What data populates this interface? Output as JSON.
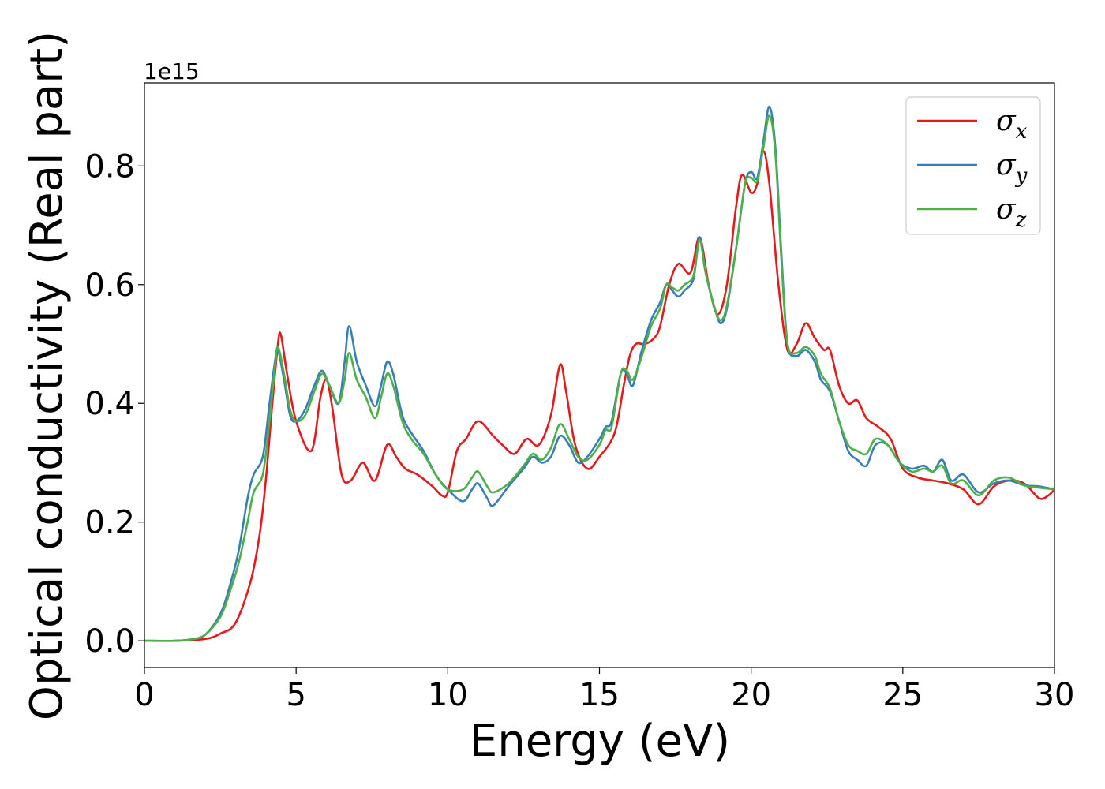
{
  "chart_data": {
    "type": "line",
    "title": "",
    "xlabel": "Energy (eV)",
    "ylabel": "Optical conductivity (Real part)",
    "y_offset_label": "1e15",
    "xlim": [
      0,
      30
    ],
    "ylim": [
      -0.045,
      0.94
    ],
    "x_ticks": [
      0,
      5,
      10,
      15,
      20,
      25,
      30
    ],
    "x_tick_labels": [
      "0",
      "5",
      "10",
      "15",
      "20",
      "25",
      "30"
    ],
    "y_ticks": [
      0.0,
      0.2,
      0.4,
      0.6,
      0.8
    ],
    "y_tick_labels": [
      "0.0",
      "0.2",
      "0.4",
      "0.6",
      "0.8"
    ],
    "grid": false,
    "legend_position": "top-right",
    "legend": [
      {
        "symbol": "σ",
        "subscript": "x",
        "color": "#e41a1c"
      },
      {
        "symbol": "σ",
        "subscript": "y",
        "color": "#377eb8"
      },
      {
        "symbol": "σ",
        "subscript": "z",
        "color": "#4daf4a"
      }
    ],
    "series": [
      {
        "name": "σx",
        "color": "#e41a1c",
        "points": [
          [
            0,
            0
          ],
          [
            1,
            0
          ],
          [
            2,
            0.003
          ],
          [
            2.5,
            0.012
          ],
          [
            3,
            0.03
          ],
          [
            3.5,
            0.1
          ],
          [
            3.8,
            0.18
          ],
          [
            4,
            0.27
          ],
          [
            4.2,
            0.39
          ],
          [
            4.4,
            0.5
          ],
          [
            4.5,
            0.515
          ],
          [
            4.7,
            0.45
          ],
          [
            5,
            0.37
          ],
          [
            5.5,
            0.32
          ],
          [
            5.8,
            0.41
          ],
          [
            6,
            0.44
          ],
          [
            6.2,
            0.39
          ],
          [
            6.5,
            0.28
          ],
          [
            6.8,
            0.27
          ],
          [
            7.2,
            0.3
          ],
          [
            7.6,
            0.27
          ],
          [
            8,
            0.33
          ],
          [
            8.3,
            0.31
          ],
          [
            8.6,
            0.29
          ],
          [
            9,
            0.28
          ],
          [
            9.5,
            0.26
          ],
          [
            9.8,
            0.245
          ],
          [
            10,
            0.25
          ],
          [
            10.3,
            0.32
          ],
          [
            10.6,
            0.34
          ],
          [
            11,
            0.37
          ],
          [
            11.5,
            0.345
          ],
          [
            11.8,
            0.33
          ],
          [
            12.2,
            0.315
          ],
          [
            12.6,
            0.34
          ],
          [
            13,
            0.33
          ],
          [
            13.4,
            0.38
          ],
          [
            13.7,
            0.465
          ],
          [
            13.9,
            0.42
          ],
          [
            14.2,
            0.33
          ],
          [
            14.6,
            0.29
          ],
          [
            15,
            0.31
          ],
          [
            15.5,
            0.35
          ],
          [
            15.8,
            0.43
          ],
          [
            16,
            0.48
          ],
          [
            16.2,
            0.5
          ],
          [
            16.5,
            0.5
          ],
          [
            16.8,
            0.51
          ],
          [
            17,
            0.53
          ],
          [
            17.3,
            0.6
          ],
          [
            17.6,
            0.635
          ],
          [
            18,
            0.62
          ],
          [
            18.3,
            0.68
          ],
          [
            18.6,
            0.6
          ],
          [
            18.9,
            0.55
          ],
          [
            19.2,
            0.6
          ],
          [
            19.5,
            0.73
          ],
          [
            19.7,
            0.785
          ],
          [
            20,
            0.755
          ],
          [
            20.2,
            0.77
          ],
          [
            20.4,
            0.825
          ],
          [
            20.6,
            0.77
          ],
          [
            20.9,
            0.6
          ],
          [
            21.2,
            0.49
          ],
          [
            21.5,
            0.5
          ],
          [
            21.8,
            0.535
          ],
          [
            22.1,
            0.51
          ],
          [
            22.4,
            0.49
          ],
          [
            22.6,
            0.49
          ],
          [
            22.9,
            0.43
          ],
          [
            23.2,
            0.4
          ],
          [
            23.5,
            0.405
          ],
          [
            23.8,
            0.375
          ],
          [
            24.2,
            0.36
          ],
          [
            24.6,
            0.34
          ],
          [
            25,
            0.29
          ],
          [
            25.5,
            0.275
          ],
          [
            26,
            0.27
          ],
          [
            26.5,
            0.265
          ],
          [
            27,
            0.255
          ],
          [
            27.5,
            0.23
          ],
          [
            28,
            0.26
          ],
          [
            28.5,
            0.27
          ],
          [
            29,
            0.265
          ],
          [
            29.5,
            0.24
          ],
          [
            29.8,
            0.245
          ],
          [
            30,
            0.255
          ]
        ]
      },
      {
        "name": "σy",
        "color": "#377eb8",
        "points": [
          [
            0,
            0
          ],
          [
            1,
            0
          ],
          [
            1.5,
            0.002
          ],
          [
            2,
            0.01
          ],
          [
            2.5,
            0.045
          ],
          [
            2.8,
            0.09
          ],
          [
            3.1,
            0.15
          ],
          [
            3.4,
            0.24
          ],
          [
            3.6,
            0.28
          ],
          [
            3.9,
            0.31
          ],
          [
            4.1,
            0.39
          ],
          [
            4.3,
            0.47
          ],
          [
            4.4,
            0.49
          ],
          [
            4.6,
            0.44
          ],
          [
            4.8,
            0.38
          ],
          [
            5,
            0.37
          ],
          [
            5.3,
            0.39
          ],
          [
            5.6,
            0.43
          ],
          [
            5.85,
            0.455
          ],
          [
            6.1,
            0.43
          ],
          [
            6.4,
            0.4
          ],
          [
            6.6,
            0.47
          ],
          [
            6.75,
            0.53
          ],
          [
            7,
            0.47
          ],
          [
            7.3,
            0.43
          ],
          [
            7.6,
            0.395
          ],
          [
            7.8,
            0.43
          ],
          [
            8,
            0.47
          ],
          [
            8.2,
            0.45
          ],
          [
            8.5,
            0.38
          ],
          [
            8.8,
            0.35
          ],
          [
            9.2,
            0.32
          ],
          [
            9.6,
            0.28
          ],
          [
            10,
            0.255
          ],
          [
            10.5,
            0.235
          ],
          [
            10.8,
            0.255
          ],
          [
            11,
            0.265
          ],
          [
            11.3,
            0.24
          ],
          [
            11.5,
            0.228
          ],
          [
            12,
            0.26
          ],
          [
            12.5,
            0.29
          ],
          [
            12.8,
            0.31
          ],
          [
            13.1,
            0.3
          ],
          [
            13.4,
            0.31
          ],
          [
            13.7,
            0.345
          ],
          [
            14,
            0.33
          ],
          [
            14.3,
            0.3
          ],
          [
            14.6,
            0.31
          ],
          [
            15,
            0.34
          ],
          [
            15.2,
            0.36
          ],
          [
            15.4,
            0.37
          ],
          [
            15.7,
            0.45
          ],
          [
            15.9,
            0.45
          ],
          [
            16.1,
            0.43
          ],
          [
            16.4,
            0.49
          ],
          [
            16.7,
            0.54
          ],
          [
            17,
            0.57
          ],
          [
            17.2,
            0.6
          ],
          [
            17.4,
            0.59
          ],
          [
            17.6,
            0.58
          ],
          [
            17.8,
            0.59
          ],
          [
            18.1,
            0.61
          ],
          [
            18.3,
            0.68
          ],
          [
            18.5,
            0.62
          ],
          [
            18.8,
            0.56
          ],
          [
            19,
            0.535
          ],
          [
            19.2,
            0.56
          ],
          [
            19.5,
            0.66
          ],
          [
            19.8,
            0.77
          ],
          [
            20,
            0.79
          ],
          [
            20.2,
            0.78
          ],
          [
            20.4,
            0.84
          ],
          [
            20.6,
            0.9
          ],
          [
            20.8,
            0.83
          ],
          [
            21,
            0.65
          ],
          [
            21.2,
            0.5
          ],
          [
            21.5,
            0.48
          ],
          [
            21.8,
            0.49
          ],
          [
            22.1,
            0.47
          ],
          [
            22.3,
            0.44
          ],
          [
            22.6,
            0.42
          ],
          [
            22.9,
            0.37
          ],
          [
            23.2,
            0.32
          ],
          [
            23.5,
            0.305
          ],
          [
            23.8,
            0.295
          ],
          [
            24.1,
            0.33
          ],
          [
            24.5,
            0.33
          ],
          [
            24.9,
            0.3
          ],
          [
            25.3,
            0.29
          ],
          [
            25.7,
            0.295
          ],
          [
            26,
            0.285
          ],
          [
            26.3,
            0.305
          ],
          [
            26.6,
            0.27
          ],
          [
            27,
            0.28
          ],
          [
            27.5,
            0.25
          ],
          [
            28,
            0.265
          ],
          [
            28.5,
            0.27
          ],
          [
            29,
            0.262
          ],
          [
            29.5,
            0.26
          ],
          [
            30,
            0.255
          ]
        ]
      },
      {
        "name": "σz",
        "color": "#4daf4a",
        "points": [
          [
            0,
            0
          ],
          [
            1,
            0
          ],
          [
            1.5,
            0.002
          ],
          [
            2,
            0.01
          ],
          [
            2.5,
            0.04
          ],
          [
            2.8,
            0.08
          ],
          [
            3.1,
            0.13
          ],
          [
            3.4,
            0.2
          ],
          [
            3.6,
            0.25
          ],
          [
            3.9,
            0.28
          ],
          [
            4.1,
            0.36
          ],
          [
            4.3,
            0.46
          ],
          [
            4.4,
            0.495
          ],
          [
            4.6,
            0.45
          ],
          [
            4.8,
            0.39
          ],
          [
            5,
            0.37
          ],
          [
            5.3,
            0.38
          ],
          [
            5.6,
            0.42
          ],
          [
            5.85,
            0.45
          ],
          [
            6.1,
            0.43
          ],
          [
            6.4,
            0.4
          ],
          [
            6.6,
            0.44
          ],
          [
            6.75,
            0.485
          ],
          [
            7,
            0.44
          ],
          [
            7.3,
            0.41
          ],
          [
            7.6,
            0.375
          ],
          [
            7.8,
            0.41
          ],
          [
            8,
            0.45
          ],
          [
            8.2,
            0.43
          ],
          [
            8.5,
            0.37
          ],
          [
            8.8,
            0.34
          ],
          [
            9.2,
            0.315
          ],
          [
            9.6,
            0.28
          ],
          [
            10,
            0.255
          ],
          [
            10.5,
            0.255
          ],
          [
            10.8,
            0.275
          ],
          [
            11,
            0.285
          ],
          [
            11.3,
            0.26
          ],
          [
            11.5,
            0.25
          ],
          [
            12,
            0.265
          ],
          [
            12.5,
            0.295
          ],
          [
            12.8,
            0.315
          ],
          [
            13.1,
            0.305
          ],
          [
            13.4,
            0.325
          ],
          [
            13.7,
            0.365
          ],
          [
            14,
            0.34
          ],
          [
            14.3,
            0.31
          ],
          [
            14.6,
            0.305
          ],
          [
            15,
            0.33
          ],
          [
            15.2,
            0.355
          ],
          [
            15.4,
            0.36
          ],
          [
            15.7,
            0.45
          ],
          [
            15.9,
            0.455
          ],
          [
            16.1,
            0.44
          ],
          [
            16.4,
            0.48
          ],
          [
            16.7,
            0.53
          ],
          [
            17,
            0.56
          ],
          [
            17.2,
            0.6
          ],
          [
            17.4,
            0.595
          ],
          [
            17.6,
            0.59
          ],
          [
            17.8,
            0.6
          ],
          [
            18.1,
            0.615
          ],
          [
            18.3,
            0.675
          ],
          [
            18.5,
            0.62
          ],
          [
            18.8,
            0.56
          ],
          [
            19,
            0.54
          ],
          [
            19.2,
            0.565
          ],
          [
            19.5,
            0.66
          ],
          [
            19.8,
            0.77
          ],
          [
            20,
            0.78
          ],
          [
            20.2,
            0.775
          ],
          [
            20.4,
            0.83
          ],
          [
            20.6,
            0.885
          ],
          [
            20.8,
            0.82
          ],
          [
            21,
            0.64
          ],
          [
            21.2,
            0.5
          ],
          [
            21.5,
            0.485
          ],
          [
            21.8,
            0.495
          ],
          [
            22.1,
            0.48
          ],
          [
            22.3,
            0.45
          ],
          [
            22.6,
            0.425
          ],
          [
            22.9,
            0.37
          ],
          [
            23.2,
            0.33
          ],
          [
            23.5,
            0.32
          ],
          [
            23.8,
            0.315
          ],
          [
            24.1,
            0.34
          ],
          [
            24.5,
            0.33
          ],
          [
            24.9,
            0.3
          ],
          [
            25.3,
            0.285
          ],
          [
            25.7,
            0.29
          ],
          [
            26,
            0.285
          ],
          [
            26.3,
            0.295
          ],
          [
            26.6,
            0.265
          ],
          [
            27,
            0.27
          ],
          [
            27.5,
            0.245
          ],
          [
            28,
            0.27
          ],
          [
            28.5,
            0.275
          ],
          [
            29,
            0.262
          ],
          [
            29.5,
            0.258
          ],
          [
            30,
            0.255
          ]
        ]
      }
    ]
  }
}
